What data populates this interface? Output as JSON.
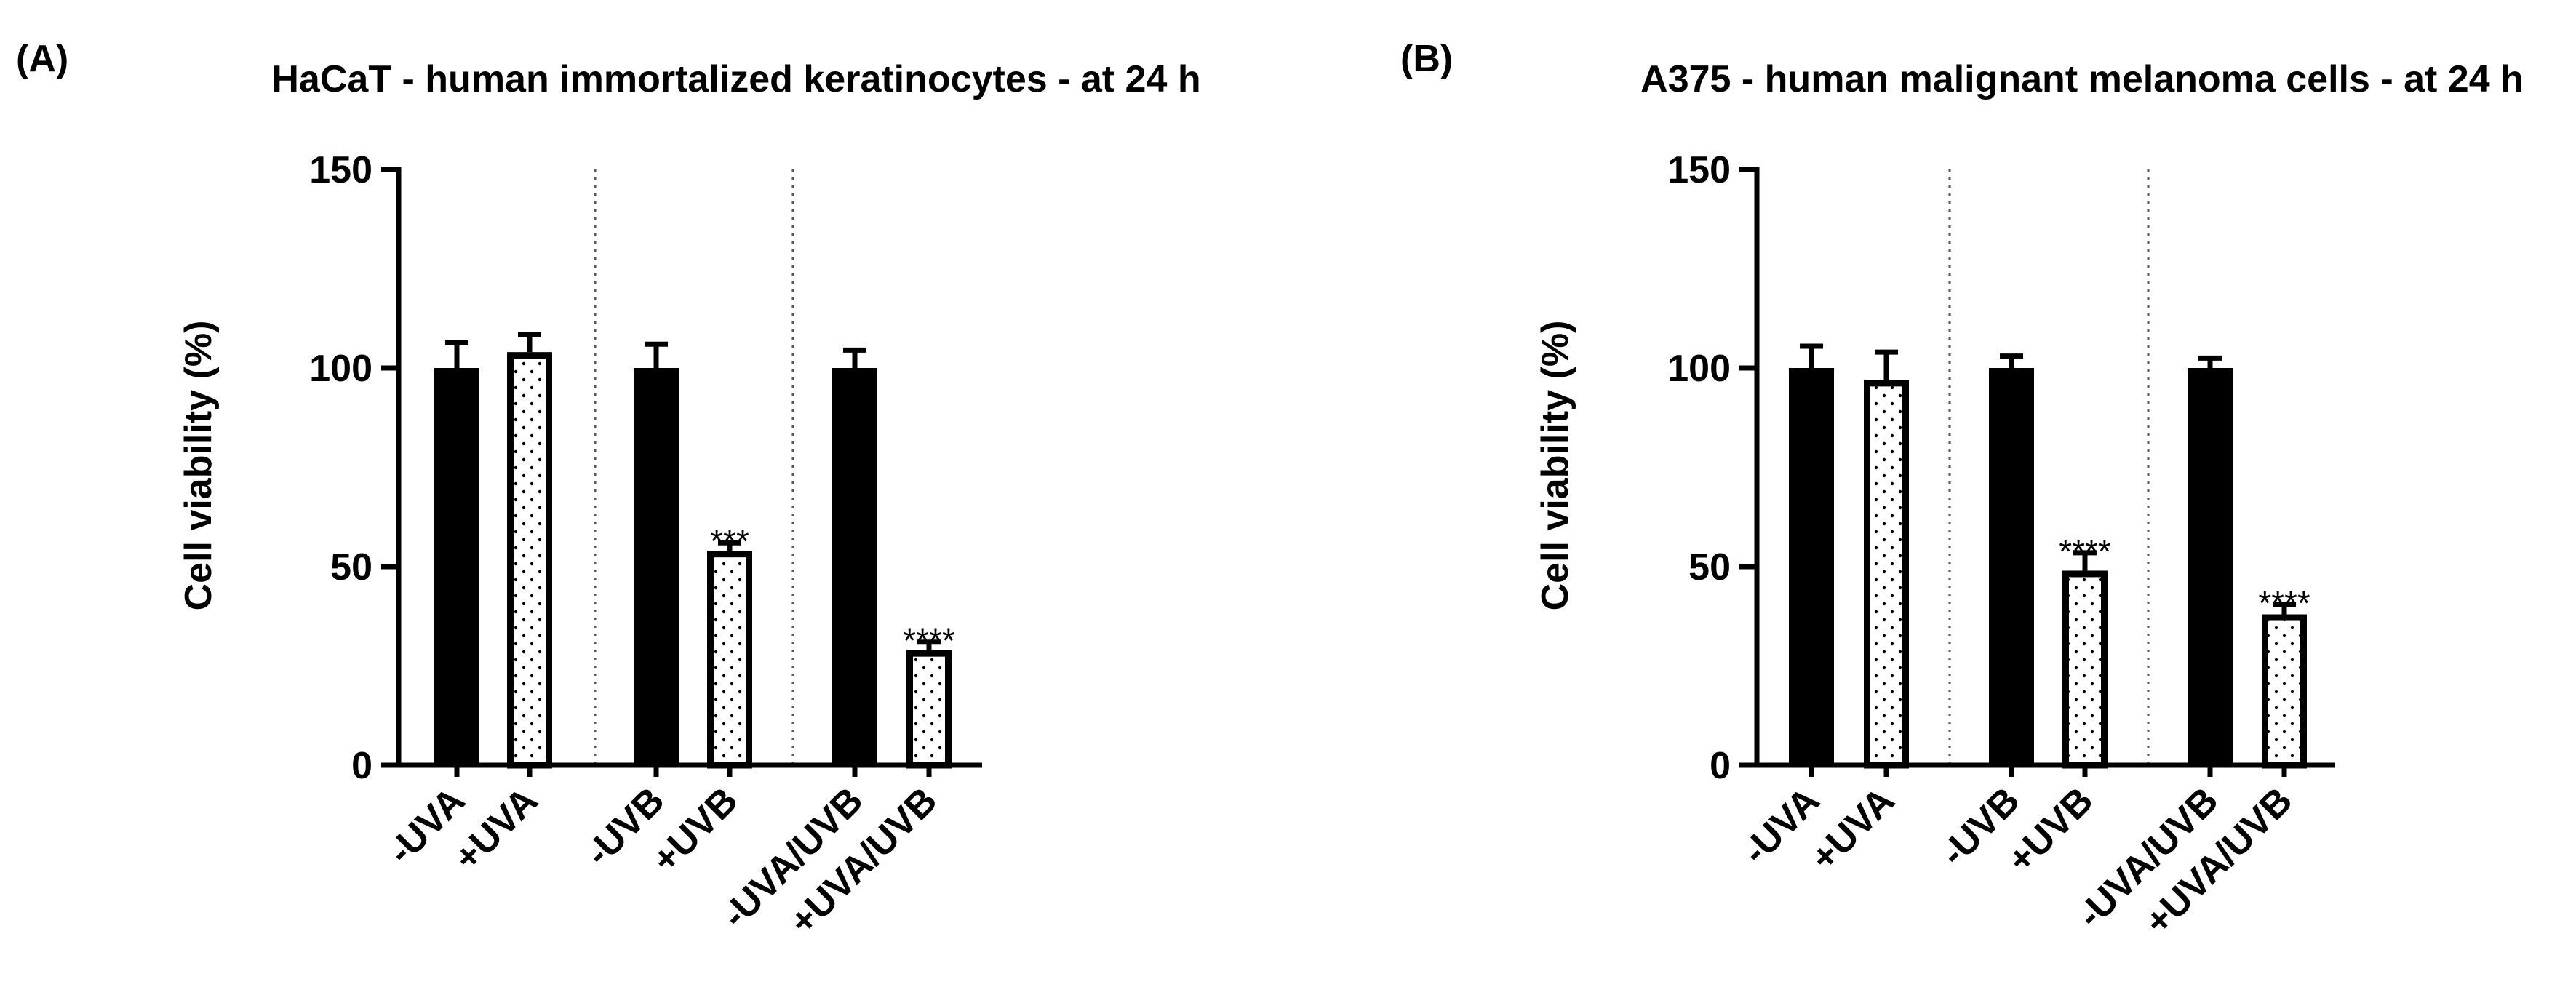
{
  "chart_data": [
    {
      "type": "bar",
      "panel_label": "(A)",
      "title": "HaCaT - human immortalized keratinocytes - at 24 h",
      "xlabel": "",
      "ylabel": "Cell viability (%)",
      "ylim": [
        0,
        150
      ],
      "yticks": [
        "0",
        "50",
        "100",
        "150"
      ],
      "grid": false,
      "categories": [
        "-UVA",
        "+UVA",
        "-UVB",
        "+UVB",
        "-UVA/UVB",
        "+UVA/UVB"
      ],
      "values": [
        100,
        104,
        100,
        54,
        100,
        29
      ],
      "errors": [
        6.5,
        4.5,
        6,
        2,
        4.5,
        2
      ],
      "patterns": [
        "solid",
        "dotted",
        "solid",
        "dotted",
        "solid",
        "dotted"
      ],
      "significance": [
        "",
        "",
        "",
        "***",
        "",
        "****"
      ],
      "group_dividers_after": [
        1,
        3
      ]
    },
    {
      "type": "bar",
      "panel_label": "(B)",
      "title": "A375 - human malignant melanoma cells - at 24 h",
      "xlabel": "",
      "ylabel": "Cell viability (%)",
      "ylim": [
        0,
        150
      ],
      "yticks": [
        "0",
        "50",
        "100",
        "150"
      ],
      "grid": false,
      "categories": [
        "-UVA",
        "+UVA",
        "-UVB",
        "+UVB",
        "-UVA/UVB",
        "+UVA/UVB"
      ],
      "values": [
        100,
        97,
        100,
        49,
        100,
        38
      ],
      "errors": [
        5.5,
        7,
        3,
        4.5,
        2.5,
        2.5
      ],
      "patterns": [
        "solid",
        "dotted",
        "solid",
        "dotted",
        "solid",
        "dotted"
      ],
      "significance": [
        "",
        "",
        "",
        "****",
        "",
        "****"
      ],
      "group_dividers_after": [
        1,
        3
      ]
    }
  ]
}
